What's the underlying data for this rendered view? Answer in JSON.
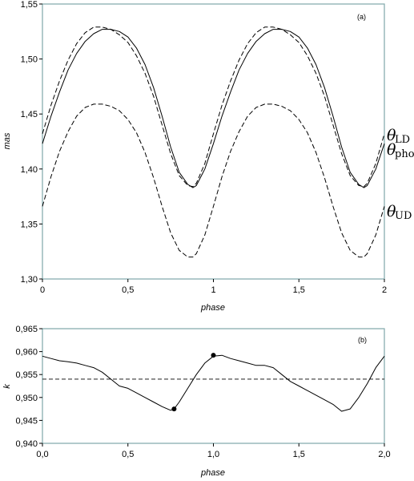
{
  "chart_data": [
    {
      "type": "line",
      "panel_label": "(a)",
      "xlabel": "phase",
      "ylabel": "mas",
      "xlim": [
        0,
        2
      ],
      "ylim": [
        1.3,
        1.55
      ],
      "x_ticks": [
        "0",
        "0,5",
        "1",
        "1,5",
        "2"
      ],
      "y_ticks": [
        "1,30",
        "1,35",
        "1,40",
        "1,45",
        "1,50",
        "1,55"
      ],
      "grid": false,
      "series": [
        {
          "name": "θLD",
          "name_symbol": "θ",
          "name_sub": "LD",
          "style": "solid",
          "x": [
            0.0,
            0.05,
            0.1,
            0.15,
            0.2,
            0.25,
            0.3,
            0.35,
            0.4,
            0.45,
            0.5,
            0.55,
            0.6,
            0.65,
            0.7,
            0.75,
            0.8,
            0.85,
            0.88,
            0.9,
            0.95,
            1.0,
            1.05,
            1.1,
            1.15,
            1.2,
            1.25,
            1.3,
            1.35,
            1.4,
            1.45,
            1.5,
            1.55,
            1.6,
            1.65,
            1.7,
            1.75,
            1.8,
            1.85,
            1.88,
            1.9,
            1.95,
            2.0
          ],
          "values": [
            1.423,
            1.448,
            1.47,
            1.49,
            1.505,
            1.516,
            1.523,
            1.527,
            1.527,
            1.525,
            1.52,
            1.51,
            1.495,
            1.474,
            1.448,
            1.42,
            1.397,
            1.386,
            1.383,
            1.385,
            1.4,
            1.423,
            1.448,
            1.47,
            1.49,
            1.505,
            1.516,
            1.523,
            1.527,
            1.527,
            1.525,
            1.52,
            1.51,
            1.495,
            1.474,
            1.448,
            1.42,
            1.397,
            1.386,
            1.383,
            1.385,
            1.4,
            1.423
          ]
        },
        {
          "name": "θphoto",
          "name_symbol": "θ",
          "name_sub": "photo",
          "style": "dashed",
          "x": [
            0.0,
            0.05,
            0.1,
            0.15,
            0.2,
            0.25,
            0.3,
            0.35,
            0.4,
            0.45,
            0.5,
            0.55,
            0.6,
            0.65,
            0.7,
            0.75,
            0.8,
            0.85,
            0.88,
            0.9,
            0.95,
            1.0,
            1.05,
            1.1,
            1.15,
            1.2,
            1.25,
            1.3,
            1.35,
            1.4,
            1.45,
            1.5,
            1.55,
            1.6,
            1.65,
            1.7,
            1.75,
            1.8,
            1.85,
            1.88,
            1.9,
            1.95,
            2.0
          ],
          "values": [
            1.432,
            1.458,
            1.48,
            1.499,
            1.514,
            1.524,
            1.529,
            1.529,
            1.527,
            1.522,
            1.515,
            1.503,
            1.487,
            1.466,
            1.44,
            1.414,
            1.394,
            1.385,
            1.384,
            1.387,
            1.405,
            1.432,
            1.458,
            1.48,
            1.499,
            1.514,
            1.524,
            1.529,
            1.529,
            1.527,
            1.522,
            1.515,
            1.503,
            1.487,
            1.466,
            1.44,
            1.414,
            1.394,
            1.385,
            1.384,
            1.387,
            1.405,
            1.432
          ]
        },
        {
          "name": "θUD",
          "name_symbol": "θ",
          "name_sub": "UD",
          "style": "dashed",
          "x": [
            0.0,
            0.05,
            0.1,
            0.15,
            0.2,
            0.25,
            0.3,
            0.35,
            0.4,
            0.45,
            0.5,
            0.55,
            0.6,
            0.65,
            0.7,
            0.75,
            0.8,
            0.85,
            0.88,
            0.9,
            0.95,
            1.0,
            1.05,
            1.1,
            1.15,
            1.2,
            1.25,
            1.3,
            1.35,
            1.4,
            1.45,
            1.5,
            1.55,
            1.6,
            1.65,
            1.7,
            1.75,
            1.8,
            1.85,
            1.88,
            1.9,
            1.95,
            2.0
          ],
          "values": [
            1.366,
            1.393,
            1.416,
            1.434,
            1.448,
            1.456,
            1.459,
            1.459,
            1.457,
            1.453,
            1.445,
            1.433,
            1.415,
            1.392,
            1.366,
            1.342,
            1.326,
            1.32,
            1.32,
            1.323,
            1.34,
            1.366,
            1.393,
            1.416,
            1.434,
            1.448,
            1.456,
            1.459,
            1.459,
            1.457,
            1.453,
            1.445,
            1.433,
            1.415,
            1.392,
            1.366,
            1.342,
            1.326,
            1.32,
            1.32,
            1.323,
            1.34,
            1.366
          ]
        }
      ]
    },
    {
      "type": "line",
      "panel_label": "(b)",
      "xlabel": "phase",
      "ylabel": "k",
      "xlim": [
        0,
        2
      ],
      "ylim": [
        0.94,
        0.965
      ],
      "x_ticks": [
        "0,0",
        "0,5",
        "1,0",
        "1,5",
        "2,0"
      ],
      "y_ticks": [
        "0,940",
        "0,945",
        "0,950",
        "0,955",
        "0,960",
        "0,965"
      ],
      "grid": false,
      "reference_line": {
        "y": 0.954,
        "style": "dashed"
      },
      "markers": [
        {
          "x": 0.77,
          "y": 0.9475
        },
        {
          "x": 1.0,
          "y": 0.9592
        }
      ],
      "series": [
        {
          "style": "solid",
          "x": [
            0.0,
            0.05,
            0.1,
            0.15,
            0.2,
            0.25,
            0.3,
            0.35,
            0.4,
            0.45,
            0.5,
            0.55,
            0.6,
            0.65,
            0.7,
            0.75,
            0.77,
            0.8,
            0.85,
            0.9,
            0.95,
            1.0,
            1.05,
            1.1,
            1.15,
            1.2,
            1.25,
            1.3,
            1.35,
            1.4,
            1.45,
            1.5,
            1.55,
            1.6,
            1.65,
            1.7,
            1.75,
            1.8,
            1.85,
            1.9,
            1.95,
            2.0
          ],
          "values": [
            0.959,
            0.9585,
            0.958,
            0.9578,
            0.9575,
            0.957,
            0.9565,
            0.9555,
            0.954,
            0.9525,
            0.952,
            0.951,
            0.95,
            0.949,
            0.948,
            0.9472,
            0.9475,
            0.949,
            0.952,
            0.955,
            0.9575,
            0.959,
            0.9592,
            0.9585,
            0.958,
            0.9575,
            0.957,
            0.957,
            0.9565,
            0.955,
            0.9535,
            0.9525,
            0.9515,
            0.9505,
            0.9495,
            0.9485,
            0.947,
            0.9475,
            0.95,
            0.953,
            0.9565,
            0.959
          ]
        }
      ]
    }
  ]
}
